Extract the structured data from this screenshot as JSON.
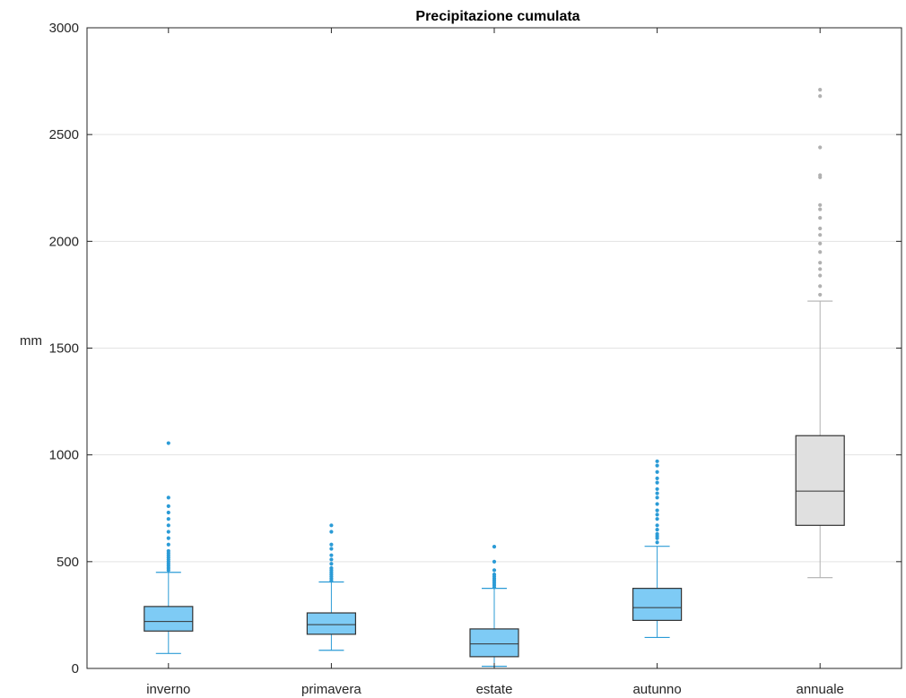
{
  "chart_data": {
    "type": "box",
    "title": "Precipitazione cumulata",
    "xlabel": "",
    "ylabel": "mm",
    "ylim": [
      0,
      3000
    ],
    "yticks": [
      0,
      500,
      1000,
      1500,
      2000,
      2500,
      3000
    ],
    "grid": true,
    "categories": [
      "inverno",
      "primavera",
      "estate",
      "autunno",
      "annuale"
    ],
    "boxes": [
      {
        "category": "inverno",
        "color": "#7ecbf5",
        "line_color": "#2b9bd6",
        "whisker_low": 70,
        "q1": 175,
        "median": 220,
        "q3": 290,
        "whisker_high": 450,
        "outliers": [
          460,
          470,
          480,
          490,
          500,
          510,
          520,
          530,
          540,
          550,
          580,
          610,
          640,
          670,
          700,
          730,
          760,
          800,
          1055
        ]
      },
      {
        "category": "primavera",
        "color": "#7ecbf5",
        "line_color": "#2b9bd6",
        "whisker_low": 85,
        "q1": 160,
        "median": 205,
        "q3": 260,
        "whisker_high": 405,
        "outliers": [
          410,
          420,
          430,
          440,
          450,
          460,
          470,
          490,
          510,
          530,
          560,
          580,
          640,
          670
        ]
      },
      {
        "category": "estate",
        "color": "#7ecbf5",
        "line_color": "#2b9bd6",
        "whisker_low": 10,
        "q1": 55,
        "median": 115,
        "q3": 185,
        "whisker_high": 375,
        "outliers": [
          380,
          390,
          400,
          410,
          420,
          430,
          440,
          460,
          500,
          570
        ]
      },
      {
        "category": "autunno",
        "color": "#7ecbf5",
        "line_color": "#2b9bd6",
        "whisker_low": 145,
        "q1": 225,
        "median": 285,
        "q3": 375,
        "whisker_high": 572,
        "outliers": [
          590,
          610,
          620,
          630,
          650,
          670,
          700,
          720,
          740,
          770,
          800,
          820,
          840,
          870,
          890,
          920,
          950,
          970
        ]
      },
      {
        "category": "annuale",
        "color": "#e0e0e0",
        "line_color": "#b0b0b0",
        "whisker_low": 425,
        "q1": 670,
        "median": 830,
        "q3": 1090,
        "whisker_high": 1720,
        "outliers": [
          1750,
          1790,
          1840,
          1870,
          1900,
          1950,
          1990,
          2030,
          2060,
          2110,
          2150,
          2170,
          2300,
          2310,
          2440,
          2680,
          2710
        ]
      }
    ]
  }
}
